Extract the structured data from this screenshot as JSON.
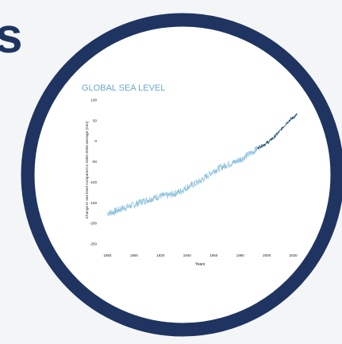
{
  "page": {
    "corner_text": "s"
  },
  "colors": {
    "ring": "#1f3461",
    "title": "#6aa8d0",
    "line_old": "#8ec3df",
    "line_new": "#1e4f6e",
    "text": "#222222"
  },
  "chart_data": {
    "type": "line",
    "title": "GLOBAL SEA LEVEL",
    "xlabel": "Years",
    "ylabel": "Change in sea level compared to 1993-2008 average (mm)",
    "xlim": [
      1875,
      2025
    ],
    "ylim": [
      -250,
      100
    ],
    "xticks": [
      1880,
      1900,
      1920,
      1940,
      1960,
      1980,
      2000,
      2020
    ],
    "yticks": [
      100,
      50,
      0,
      -50,
      -100,
      -150,
      -200,
      -250
    ],
    "grid": false,
    "series": [
      {
        "x": [
          1880,
          1885,
          1890,
          1895,
          1900,
          1905,
          1910,
          1915,
          1920,
          1925,
          1930,
          1935,
          1940,
          1945,
          1950,
          1955,
          1960,
          1965,
          1970,
          1975,
          1980,
          1985,
          1990,
          1993,
          1995,
          2000,
          2005,
          2010,
          2015,
          2020,
          2023
        ],
        "values": [
          -175,
          -172,
          -165,
          -160,
          -155,
          -148,
          -143,
          -138,
          -133,
          -133,
          -128,
          -122,
          -112,
          -105,
          -97,
          -85,
          -72,
          -65,
          -57,
          -52,
          -45,
          -35,
          -25,
          -17,
          -13,
          -5,
          8,
          25,
          45,
          58,
          65
        ]
      }
    ]
  }
}
